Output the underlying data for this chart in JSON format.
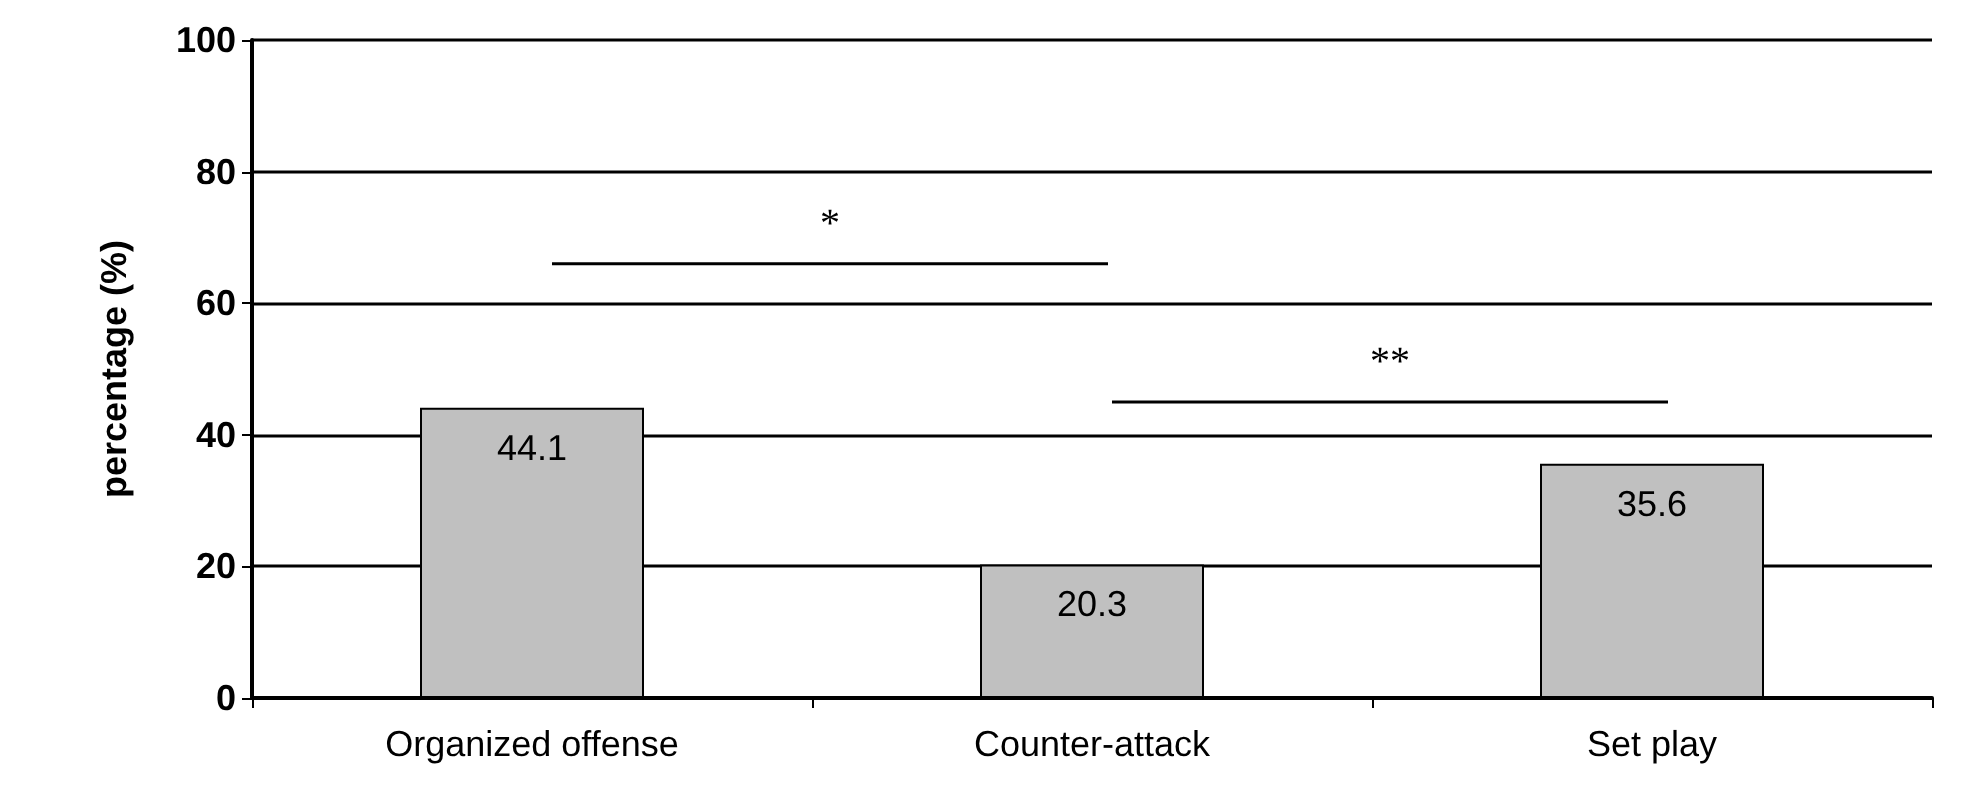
{
  "chart_data": {
    "type": "bar",
    "ylabel": "percentage (%)",
    "categories": [
      "Organized offense",
      "Counter-attack",
      "Set play"
    ],
    "values": [
      44.1,
      20.3,
      35.6
    ],
    "color": "#c0c0c0",
    "ylim": [
      0,
      100
    ],
    "yticks": [
      0,
      20,
      40,
      60,
      80,
      100
    ],
    "grid": "y",
    "data_labels": true,
    "annotations": [
      "*",
      "**"
    ]
  }
}
